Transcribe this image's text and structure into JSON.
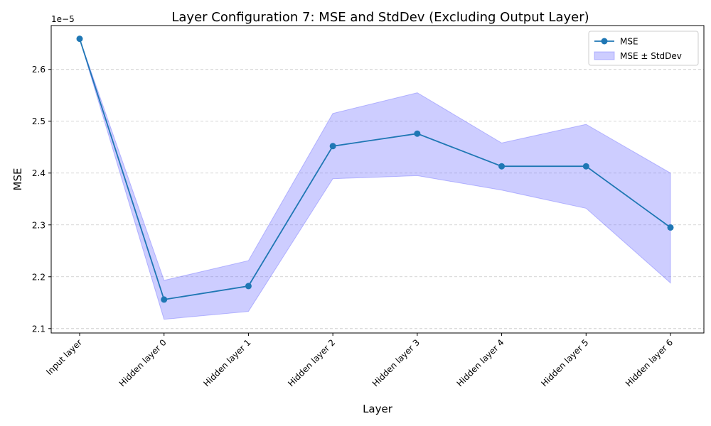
{
  "chart_data": {
    "type": "line",
    "title": "Layer Configuration 7: MSE and StdDev (Excluding Output Layer)",
    "xlabel": "Layer",
    "ylabel": "MSE",
    "y_offset_label": "1e−5",
    "categories": [
      "Input layer",
      "Hidden layer 0",
      "Hidden layer 1",
      "Hidden layer 2",
      "Hidden layer 3",
      "Hidden layer 4",
      "Hidden layer 5",
      "Hidden layer 6"
    ],
    "series": [
      {
        "name": "MSE",
        "values": [
          2.659e-05,
          2.156e-05,
          2.182e-05,
          2.452e-05,
          2.476e-05,
          2.413e-05,
          2.413e-05,
          2.295e-05
        ],
        "color": "#1f77b4"
      }
    ],
    "band": {
      "name": "MSE ± StdDev",
      "lower": [
        2.659e-05,
        2.118e-05,
        2.133e-05,
        2.389e-05,
        2.395e-05,
        2.367e-05,
        2.332e-05,
        2.188e-05
      ],
      "upper": [
        2.659e-05,
        2.193e-05,
        2.231e-05,
        2.515e-05,
        2.555e-05,
        2.458e-05,
        2.494e-05,
        2.4e-05
      ],
      "color": "#6666ff"
    },
    "yticks": [
      2.1e-05,
      2.2e-05,
      2.3e-05,
      2.4e-05,
      2.5e-05,
      2.6e-05
    ],
    "ytick_labels": [
      "2.1",
      "2.2",
      "2.3",
      "2.4",
      "2.5",
      "2.6"
    ],
    "ylim": [
      2.0915e-05,
      2.6845e-05
    ],
    "grid": "y-dashed",
    "legend_position": "top-right"
  }
}
